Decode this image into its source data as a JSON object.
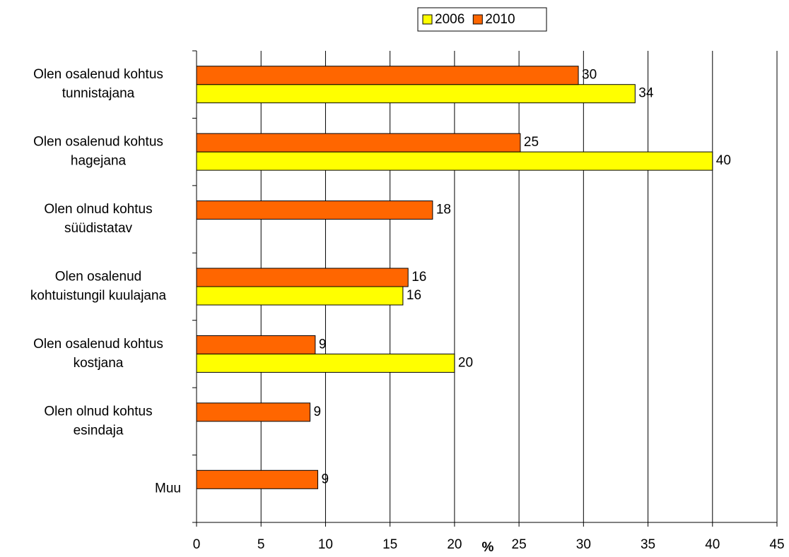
{
  "chart_data": {
    "type": "hbar",
    "categories": [
      [
        "Olen osalenud kohtus",
        "tunnistajana"
      ],
      [
        "Olen osalenud kohtus",
        "hagejana"
      ],
      [
        "Olen olnud kohtus",
        "süüdistatav"
      ],
      [
        "Olen osalenud",
        "kohtuistungil kuulajana"
      ],
      [
        "Olen osalenud kohtus",
        "kostjana"
      ],
      [
        "Olen olnud kohtus",
        "esindaja"
      ],
      [
        "Muu"
      ]
    ],
    "series": [
      {
        "name": "2006",
        "color": "#ffff00",
        "values": [
          34,
          40,
          null,
          16,
          20,
          null,
          null
        ]
      },
      {
        "name": "2010",
        "color": "#ff6600",
        "values": [
          29.6,
          25.1,
          18.3,
          16.4,
          9.2,
          8.8,
          9.4
        ],
        "value_labels": [
          "30",
          "25",
          "18",
          "16",
          "9",
          "9",
          "9"
        ]
      }
    ],
    "xlabel": "%",
    "xlim": [
      0,
      45
    ],
    "xticks": [
      0,
      5,
      10,
      15,
      20,
      25,
      30,
      35,
      40,
      45
    ],
    "grid": true,
    "legend": "top"
  }
}
